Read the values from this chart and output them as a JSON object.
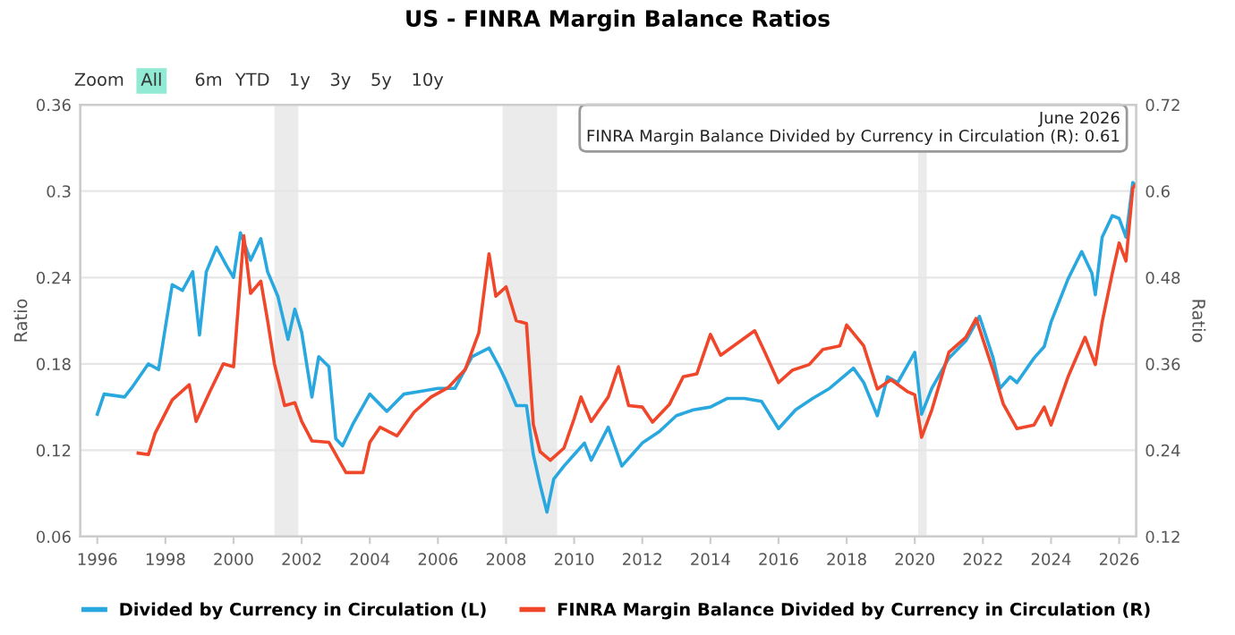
{
  "chart_data": {
    "type": "line",
    "title": "US - FINRA Margin Balance Ratios",
    "ylabel": "Ratio",
    "y2label": "Ratio",
    "annotations": [
      "Zoom",
      "All",
      "6m",
      "YTD",
      "1y",
      "3y",
      "5y",
      "10y",
      "June 2026\nFINRA Margin Balance Divided by Currency in Circulation (R): 0.61"
    ],
    "series": [
      {
        "name": "Divided by Currency in Circulation (L)",
        "color": "#29a8df",
        "x": [
          1996.0,
          1996.2,
          1996.8,
          1997.0,
          1997.5,
          1997.8,
          1998.2,
          1998.5,
          1998.8,
          1999.0,
          1999.2,
          1999.5,
          1999.8,
          2000.0,
          2000.2,
          2000.5,
          2000.8,
          2001.0,
          2001.3,
          2001.6,
          2001.8,
          2002.0,
          2002.3,
          2002.5,
          2002.8,
          2003.0,
          2003.2,
          2003.5,
          2004.0,
          2004.5,
          2005.0,
          2005.5,
          2006.0,
          2006.5,
          2007.0,
          2007.5,
          2007.8,
          2008.0,
          2008.3,
          2008.6,
          2008.8,
          2009.0,
          2009.2,
          2009.4,
          2009.7,
          2010.0,
          2010.3,
          2010.5,
          2011.0,
          2011.4,
          2012.0,
          2012.5,
          2013.0,
          2013.5,
          2014.0,
          2014.5,
          2015.0,
          2015.5,
          2016.0,
          2016.5,
          2017.0,
          2017.5,
          2018.0,
          2018.2,
          2018.5,
          2018.9,
          2019.2,
          2019.5,
          2020.0,
          2020.2,
          2020.5,
          2021.0,
          2021.5,
          2021.9,
          2022.3,
          2022.5,
          2022.8,
          2023.0,
          2023.5,
          2023.8,
          2024.0,
          2024.5,
          2024.9,
          2025.2,
          2025.3,
          2025.5,
          2025.8,
          2026.0,
          2026.2,
          2026.4,
          2026.5
        ],
        "values": [
          0.145,
          0.159,
          0.157,
          0.163,
          0.18,
          0.176,
          0.235,
          0.231,
          0.244,
          0.2,
          0.244,
          0.261,
          0.248,
          0.24,
          0.271,
          0.252,
          0.267,
          0.244,
          0.227,
          0.197,
          0.218,
          0.202,
          0.157,
          0.185,
          0.178,
          0.128,
          0.123,
          0.138,
          0.159,
          0.147,
          0.159,
          0.161,
          0.163,
          0.163,
          0.185,
          0.191,
          0.178,
          0.168,
          0.151,
          0.151,
          0.117,
          0.096,
          0.077,
          0.1,
          0.109,
          0.117,
          0.125,
          0.113,
          0.136,
          0.109,
          0.125,
          0.133,
          0.144,
          0.148,
          0.15,
          0.156,
          0.156,
          0.154,
          0.135,
          0.148,
          0.156,
          0.163,
          0.173,
          0.177,
          0.167,
          0.144,
          0.171,
          0.167,
          0.188,
          0.145,
          0.163,
          0.184,
          0.196,
          0.213,
          0.184,
          0.163,
          0.171,
          0.167,
          0.184,
          0.192,
          0.209,
          0.239,
          0.258,
          0.243,
          0.228,
          0.268,
          0.283,
          0.281,
          0.268,
          0.306,
          0.304
        ]
      },
      {
        "name": "FINRA Margin Balance Divided by Currency in Circulation (R)",
        "color": "#f0462a",
        "axis": "y2",
        "x": [
          1997.2,
          1997.5,
          1997.7,
          1998.2,
          1998.7,
          1998.9,
          1999.3,
          1999.7,
          2000.0,
          2000.3,
          2000.5,
          2000.8,
          2001.0,
          2001.2,
          2001.5,
          2001.8,
          2002.0,
          2002.3,
          2002.8,
          2003.0,
          2003.3,
          2003.8,
          2004.0,
          2004.3,
          2004.8,
          2005.3,
          2005.8,
          2006.3,
          2006.8,
          2007.2,
          2007.5,
          2007.7,
          2008.0,
          2008.3,
          2008.6,
          2008.8,
          2009.0,
          2009.3,
          2009.7,
          2010.0,
          2010.2,
          2010.5,
          2011.0,
          2011.3,
          2011.6,
          2012.0,
          2012.3,
          2012.8,
          2013.2,
          2013.6,
          2014.0,
          2014.3,
          2014.8,
          2015.3,
          2015.6,
          2016.0,
          2016.4,
          2016.9,
          2017.3,
          2017.8,
          2018.0,
          2018.5,
          2018.9,
          2019.3,
          2019.8,
          2020.0,
          2020.2,
          2020.5,
          2021.0,
          2021.5,
          2021.8,
          2022.3,
          2022.6,
          2023.0,
          2023.5,
          2023.8,
          2024.0,
          2024.5,
          2025.0,
          2025.3,
          2025.5,
          2025.8,
          2026.0,
          2026.2,
          2026.4,
          2026.5
        ],
        "values": [
          0.236,
          0.234,
          0.264,
          0.31,
          0.331,
          0.28,
          0.321,
          0.36,
          0.356,
          0.538,
          0.458,
          0.475,
          0.42,
          0.36,
          0.302,
          0.306,
          0.28,
          0.253,
          0.251,
          0.234,
          0.209,
          0.209,
          0.251,
          0.272,
          0.26,
          0.293,
          0.314,
          0.327,
          0.352,
          0.403,
          0.513,
          0.454,
          0.467,
          0.42,
          0.416,
          0.276,
          0.238,
          0.226,
          0.243,
          0.284,
          0.314,
          0.28,
          0.314,
          0.356,
          0.302,
          0.3,
          0.279,
          0.304,
          0.342,
          0.346,
          0.401,
          0.372,
          0.389,
          0.406,
          0.376,
          0.334,
          0.351,
          0.359,
          0.38,
          0.385,
          0.414,
          0.385,
          0.325,
          0.338,
          0.321,
          0.317,
          0.258,
          0.296,
          0.376,
          0.397,
          0.423,
          0.351,
          0.304,
          0.27,
          0.275,
          0.3,
          0.275,
          0.342,
          0.397,
          0.359,
          0.418,
          0.486,
          0.528,
          0.503,
          0.604,
          0.61
        ]
      }
    ],
    "bands": [
      {
        "axis": "x",
        "from": 2001.2,
        "to": 2001.9,
        "color": "#ebebeb"
      },
      {
        "axis": "x",
        "from": 2007.9,
        "to": 2009.5,
        "color": "#ebebeb"
      },
      {
        "axis": "x",
        "from": 2020.1,
        "to": 2020.35,
        "color": "#ebebeb"
      }
    ],
    "xlim": [
      1995.5,
      2026.5
    ],
    "xticks": [
      1996,
      1998,
      2000,
      2002,
      2004,
      2006,
      2008,
      2010,
      2012,
      2014,
      2016,
      2018,
      2020,
      2022,
      2024,
      2026
    ],
    "ylim": [
      0.06,
      0.36
    ],
    "yticks": [
      0.06,
      0.12,
      0.18,
      0.24,
      0.3,
      0.36
    ],
    "y2lim": [
      0.12,
      0.72
    ],
    "y2ticks": [
      0.12,
      0.24,
      0.36,
      0.48,
      0.6,
      0.72
    ],
    "grid": "y",
    "legend": "bottom"
  }
}
